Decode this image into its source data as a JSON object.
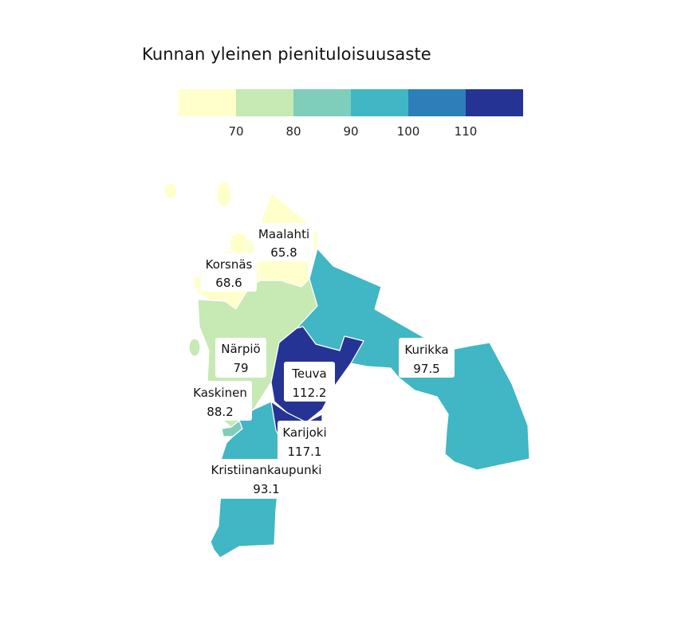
{
  "title": "Kunnan yleinen pienituloisuusaste",
  "legend": {
    "colors": [
      "#ffffcc",
      "#c7e9b4",
      "#7fcdbb",
      "#41b6c4",
      "#2c7fb8",
      "#253494"
    ],
    "ticks": [
      "70",
      "80",
      "90",
      "100",
      "110"
    ]
  },
  "regions": [
    {
      "name": "Maalahti",
      "value": "65.8",
      "color": "#ffffcc"
    },
    {
      "name": "Korsnäs",
      "value": "68.6",
      "color": "#ffffcc"
    },
    {
      "name": "Närpiö",
      "value": "79",
      "color": "#c7e9b4"
    },
    {
      "name": "Kaskinen",
      "value": "88.2",
      "color": "#7fcdbb"
    },
    {
      "name": "Teuva",
      "value": "112.2",
      "color": "#253494"
    },
    {
      "name": "Kurikka",
      "value": "97.5",
      "color": "#41b6c4"
    },
    {
      "name": "Karijoki",
      "value": "117.1",
      "color": "#253494"
    },
    {
      "name": "Kristiinankaupunki",
      "value": "93.1",
      "color": "#41b6c4"
    }
  ]
}
